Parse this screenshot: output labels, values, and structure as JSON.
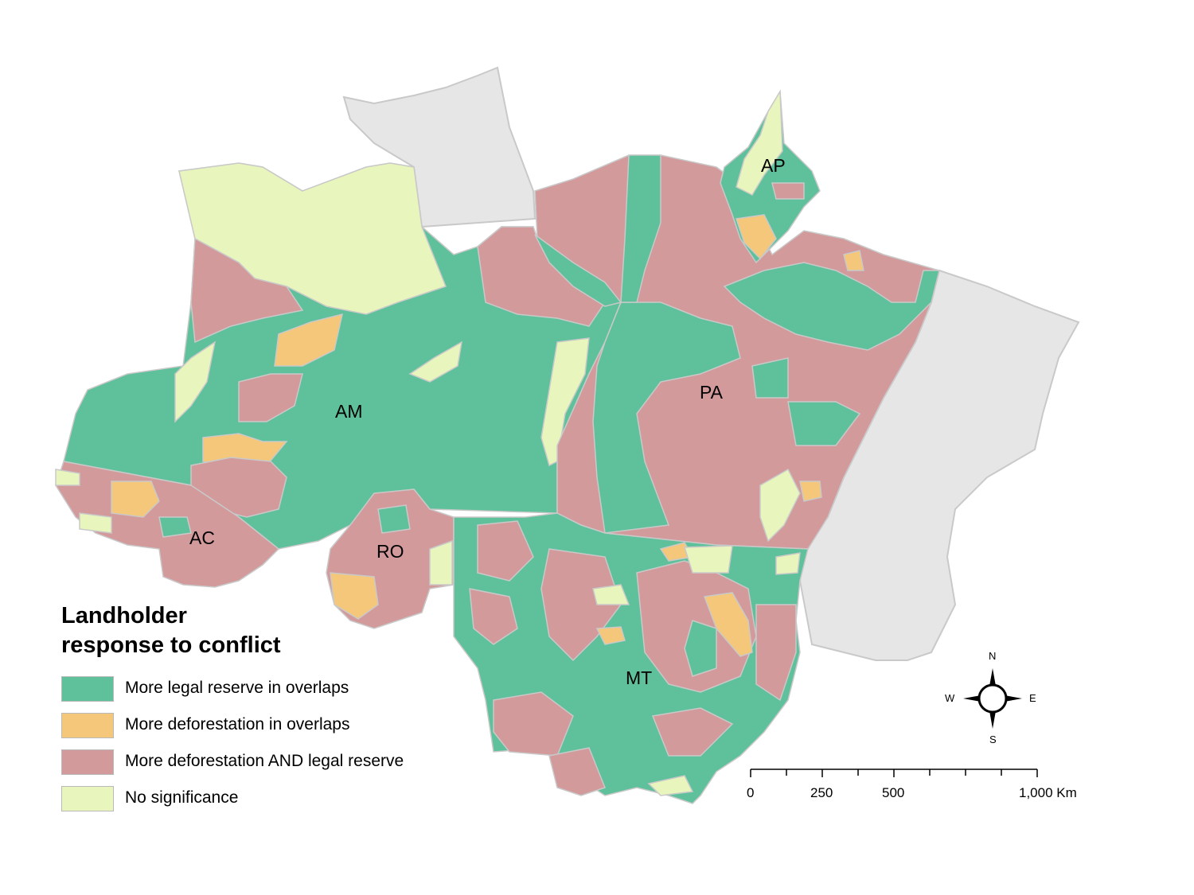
{
  "legend": {
    "title_line1": "Landholder",
    "title_line2": "response to conflict",
    "items": [
      {
        "label": "More legal reserve in overlaps",
        "color": "#5fc19b"
      },
      {
        "label": "More deforestation in overlaps",
        "color": "#f4c77a"
      },
      {
        "label": "More deforestation AND legal reserve",
        "color": "#d39a9c"
      },
      {
        "label": "No significance",
        "color": "#e8f5bd"
      }
    ]
  },
  "colors": {
    "outside": "#e6e6e6",
    "green": "#5fc19b",
    "orange": "#f4c77a",
    "pink": "#d39a9c",
    "yellow": "#e8f5bd",
    "border": "#c9c9c9"
  },
  "states": {
    "AP": "AP",
    "AM": "AM",
    "PA": "PA",
    "AC": "AC",
    "RO": "RO",
    "MT": "MT"
  },
  "compass": {
    "n": "N",
    "s": "S",
    "e": "E",
    "w": "W"
  },
  "scale_bar": {
    "labels": [
      "0",
      "250",
      "500",
      "1,000 Km"
    ]
  }
}
